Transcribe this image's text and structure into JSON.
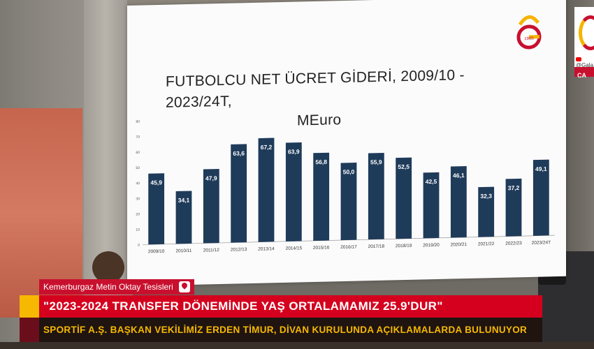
{
  "screen": {
    "logo_year": "1905"
  },
  "chart_data": {
    "type": "bar",
    "title": "FUTBOLCU NET ÜCRET GİDERİ, 2009/10 - 2023/24T,",
    "subtitle": "MEuro",
    "categories": [
      "2009/10",
      "2010/11",
      "2011/12",
      "2012/13",
      "2013/14",
      "2014/15",
      "2015/16",
      "2016/17",
      "2017/18",
      "2018/19",
      "2019/20",
      "2020/21",
      "2021/22",
      "2022/23",
      "2023/24T"
    ],
    "values": [
      45.9,
      34.1,
      47.9,
      63.6,
      67.2,
      63.9,
      56.8,
      50.0,
      55.9,
      52.5,
      42.5,
      46.1,
      32.3,
      37.2,
      49.1
    ],
    "value_labels": [
      "45,9",
      "34,1",
      "47,9",
      "63,6",
      "67,2",
      "63,9",
      "56,8",
      "50,0",
      "55,9",
      "52,5",
      "42,5",
      "46,1",
      "32,3",
      "37,2",
      "49,1"
    ],
    "yticks": [
      0,
      10,
      20,
      30,
      40,
      50,
      60,
      70,
      80
    ],
    "ylim": [
      0,
      80
    ],
    "grid": false,
    "bar_color": "#1f3b5a"
  },
  "broadcaster": {
    "yt_text": "@Gala",
    "tag": "CA"
  },
  "lower_third": {
    "location": "Kemerburgaz Metin Oktay Tesisleri",
    "headline": "\"2023-2024 TRANSFER DÖNEMİNDE YAŞ ORTALAMAMIZ 25.9'DUR\"",
    "subline": "SPORTİF A.Ş. BAŞKAN VEKİLİMİZ ERDEN TİMUR, DİVAN KURULUNDA AÇIKLAMALARDA BULUNUYOR",
    "colors": {
      "headline_bg": "#d4001e",
      "subline_text": "#f6b800",
      "accent": "#f6b800"
    }
  }
}
